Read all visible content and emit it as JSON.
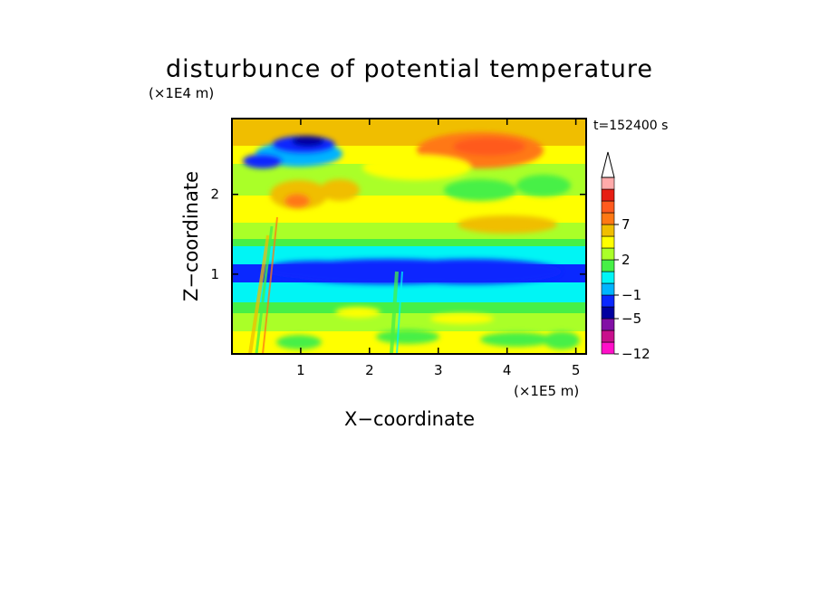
{
  "chart_data": {
    "type": "heatmap",
    "title": "disturbunce of potential temperature",
    "time_label": "t=152400 s",
    "xlabel": "X−coordinate",
    "ylabel": "Z−coordinate",
    "x_unit": "(×1E5 m)",
    "y_unit": "(×1E4 m)",
    "xlim": [
      0,
      5.15
    ],
    "ylim": [
      0,
      2.95
    ],
    "x_ticks": [
      1,
      2,
      3,
      4,
      5
    ],
    "x_tick_labels": [
      "1",
      "2",
      "3",
      "4",
      "5"
    ],
    "y_ticks": [
      1,
      2
    ],
    "y_tick_labels": [
      "1",
      "2"
    ],
    "colorbar": {
      "levels": [
        -12,
        -9,
        -7,
        -5,
        -3,
        -1,
        0,
        1,
        2,
        3,
        5,
        7,
        9,
        12
      ],
      "colors": [
        "#ff10c8",
        "#c8108c",
        "#8210a5",
        "#0000a0",
        "#0a28ff",
        "#00b4ff",
        "#00f5f5",
        "#46f046",
        "#aaff28",
        "#ffff00",
        "#f0be00",
        "#ff7814",
        "#ff5a1e",
        "#e61e14",
        "#ffaaaa"
      ],
      "labeled_ticks": [
        -12,
        -5,
        -1,
        2,
        7
      ],
      "tick_labels": [
        "−12",
        "−5",
        "−1",
        "2",
        "7"
      ],
      "extend": "max"
    },
    "field_bands": [
      {
        "z": [
          0.0,
          0.4
        ],
        "level": "yellow",
        "value": 1.5
      },
      {
        "z": [
          0.4,
          0.6
        ],
        "level": "green",
        "value": 0.5
      },
      {
        "z": [
          0.6,
          0.75
        ],
        "level": "cyan",
        "value": -0.5
      },
      {
        "z": [
          0.75,
          1.1
        ],
        "level": "blue",
        "value": -4
      },
      {
        "z": [
          1.1,
          1.4
        ],
        "level": "cyan",
        "value": -0.5
      },
      {
        "z": [
          1.4,
          1.7
        ],
        "level": "yellow",
        "value": 1.5
      },
      {
        "z": [
          1.7,
          2.1
        ],
        "level": "yellow-orange",
        "value": 2.5
      },
      {
        "z": [
          2.1,
          2.4
        ],
        "level": "green",
        "value": 0.5
      },
      {
        "z": [
          2.4,
          2.95
        ],
        "level": "orange",
        "value": 4
      }
    ]
  }
}
